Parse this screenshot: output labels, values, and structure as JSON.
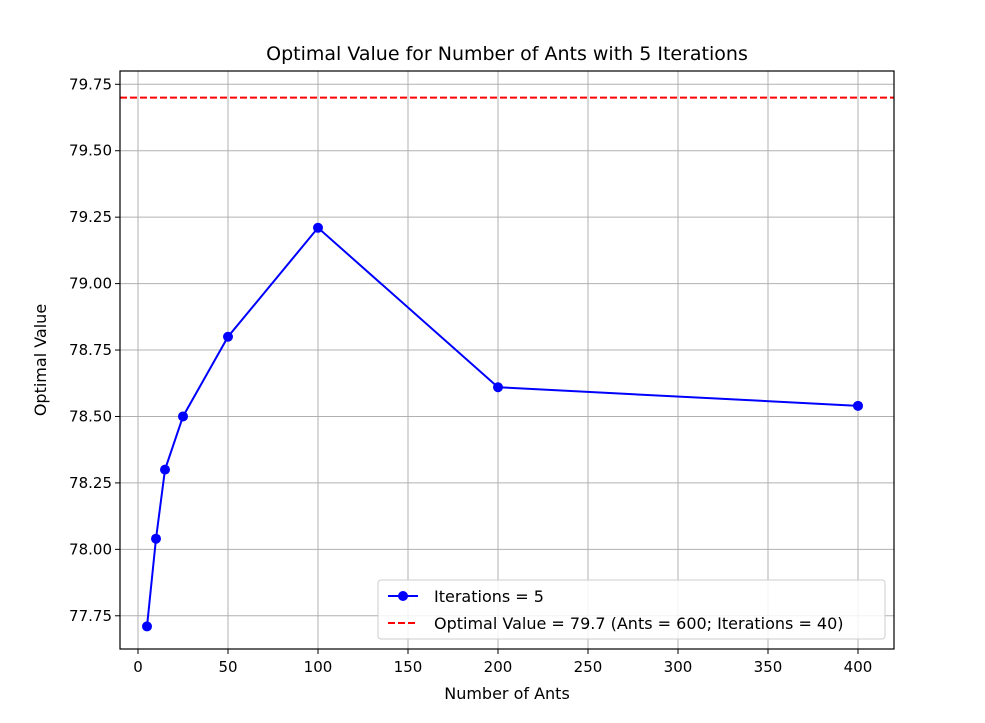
{
  "chart_data": {
    "type": "line",
    "title": "Optimal Value for Number of Ants with 5 Iterations",
    "xlabel": "Number of Ants",
    "ylabel": "Optimal Value",
    "xlim": [
      -10,
      420
    ],
    "ylim": [
      77.625,
      79.8
    ],
    "xticks": [
      0,
      50,
      100,
      150,
      200,
      250,
      300,
      350,
      400
    ],
    "yticks": [
      77.75,
      78.0,
      78.25,
      78.5,
      78.75,
      79.0,
      79.25,
      79.5,
      79.75
    ],
    "xtick_labels": [
      "0",
      "50",
      "100",
      "150",
      "200",
      "250",
      "300",
      "350",
      "400"
    ],
    "ytick_labels": [
      "77.75",
      "78.00",
      "78.25",
      "78.50",
      "78.75",
      "79.00",
      "79.25",
      "79.50",
      "79.75"
    ],
    "grid": true,
    "legend_position": "lower-right",
    "series": [
      {
        "name": "Iterations = 5",
        "color": "#0000ff",
        "marker": "circle",
        "x": [
          5,
          10,
          15,
          25,
          50,
          100,
          200,
          400
        ],
        "y": [
          77.71,
          78.04,
          78.3,
          78.5,
          78.8,
          79.21,
          78.61,
          78.54
        ]
      }
    ],
    "reference_lines": [
      {
        "name": "Optimal Value = 79.7 (Ants = 600; Iterations = 40)",
        "orientation": "horizontal",
        "y": 79.7,
        "color": "#ff0000",
        "style": "dashed"
      }
    ]
  }
}
